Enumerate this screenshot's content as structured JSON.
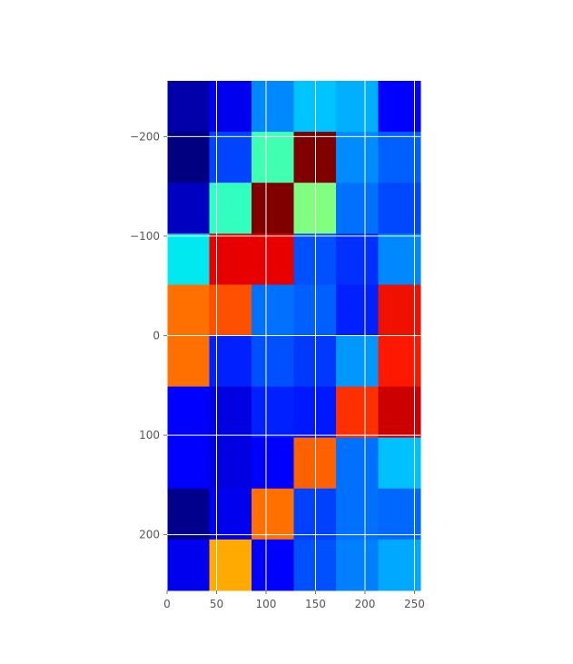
{
  "chart_data": {
    "type": "heatmap",
    "title": "",
    "xlabel": "",
    "ylabel": "",
    "colormap": "jet",
    "xlim": [
      0,
      256
    ],
    "ylim": [
      256,
      -256
    ],
    "x_edges": [
      0,
      42.67,
      85.33,
      128,
      170.67,
      213.33,
      256
    ],
    "y_edges": [
      -256,
      -204.8,
      -153.6,
      -102.4,
      -51.2,
      0,
      51.2,
      102.4,
      153.6,
      204.8,
      256
    ],
    "x_ticks": [
      0,
      50,
      100,
      150,
      200,
      250
    ],
    "y_ticks": [
      -200,
      -100,
      0,
      100,
      200
    ],
    "grid": true,
    "cell_colors": [
      [
        "#0000aa",
        "#0000ee",
        "#0088ff",
        "#00c4ff",
        "#00b0ff",
        "#0000ff"
      ],
      [
        "#000080",
        "#0044ff",
        "#40ffb0",
        "#800000",
        "#008cff",
        "#0060ff"
      ],
      [
        "#0000c0",
        "#30ffc0",
        "#800000",
        "#80ff80",
        "#0070ff",
        "#0048ff"
      ],
      [
        "#00e8f0",
        "#e80000",
        "#e80000",
        "#0050ff",
        "#0030ff",
        "#0088ff"
      ],
      [
        "#ff7000",
        "#ff5000",
        "#0070ff",
        "#0060ff",
        "#0020ff",
        "#f01000"
      ],
      [
        "#ff7000",
        "#0020ff",
        "#0050ff",
        "#0038ff",
        "#0098ff",
        "#ff1800"
      ],
      [
        "#0000ff",
        "#0000e0",
        "#0020ff",
        "#0018ff",
        "#ff3000",
        "#cc0000"
      ],
      [
        "#0000ff",
        "#0000e0",
        "#0000ff",
        "#ff6000",
        "#0070ff",
        "#00c0ff"
      ],
      [
        "#00008c",
        "#0000ee",
        "#ff7000",
        "#0040ff",
        "#0070ff",
        "#0068ff"
      ],
      [
        "#0000ee",
        "#ffaa00",
        "#0000ff",
        "#0050ff",
        "#0080ff",
        "#00a8ff"
      ]
    ]
  }
}
